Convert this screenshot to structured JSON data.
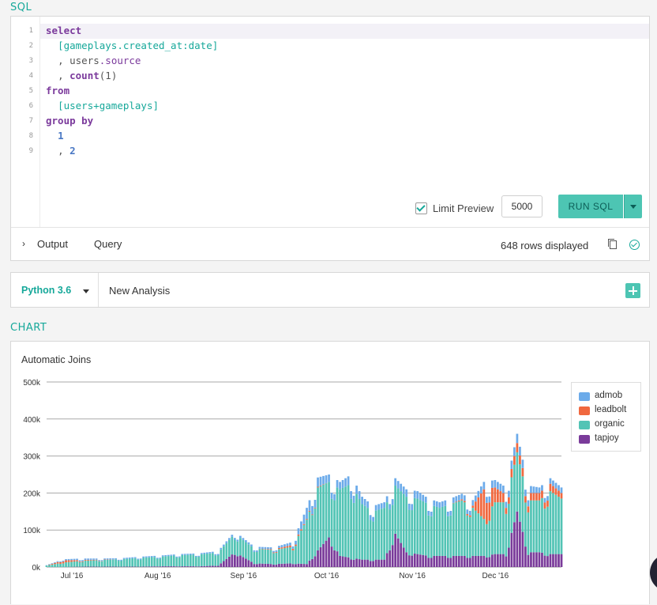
{
  "sql_section": {
    "label": "SQL",
    "line_numbers": [
      "1",
      "2",
      "3",
      "4",
      "5",
      "6",
      "7",
      "8",
      "9"
    ],
    "code": {
      "l1_kw": "select",
      "l2_table": "[gameplays.created_at:date]",
      "l3_sep": ", ",
      "l3_obj": "users",
      "l3_field": ".source",
      "l4_sep": ", ",
      "l4_fn": "count",
      "l4_args": "(1)",
      "l5_kw": "from",
      "l6_table": "[users+gameplays]",
      "l7_kw": "group by",
      "l8_num": "1",
      "l9_sep": ", ",
      "l9_num": "2"
    },
    "limit_preview_label": "Limit Preview",
    "limit_preview_checked": true,
    "limit_value": "5000",
    "run_button_label": "RUN SQL",
    "output_tab": "Output",
    "query_tab": "Query",
    "rows_displayed": "648 rows displayed"
  },
  "python_section": {
    "kernel": "Python 3.6",
    "analysis_title": "New Analysis"
  },
  "chart_section": {
    "label": "CHART"
  },
  "colors": {
    "accent": "#16a89a",
    "button": "#4dc5b3",
    "admob": "#6cabea",
    "leadbolt": "#f0683f",
    "organic": "#53c4b5",
    "tapjoy": "#7a3b9a"
  },
  "icons": [
    "chevron-right-icon",
    "copy-icon",
    "check-circle-icon",
    "caret-down-icon",
    "plus-icon",
    "checkbox-icon"
  ],
  "chart_data": {
    "type": "bar",
    "stacked": true,
    "title": "Automatic Joins",
    "ylim": [
      0,
      500000
    ],
    "y_ticks": [
      0,
      100000,
      200000,
      300000,
      400000,
      500000
    ],
    "y_tick_labels": [
      "0k",
      "100k",
      "200k",
      "300k",
      "400k",
      "500k"
    ],
    "x_tick_labels": [
      "Jul '16",
      "Aug '16",
      "Sep '16",
      "Oct '16",
      "Nov '16",
      "Dec '16"
    ],
    "x_start": "2016-06-27",
    "x_end": "2016-12-30",
    "grid": true,
    "legend_position": "top-right",
    "series": [
      {
        "name": "admob"
      },
      {
        "name": "leadbolt"
      },
      {
        "name": "organic"
      },
      {
        "name": "tapjoy"
      }
    ],
    "dates": [
      "2016-06-27",
      "2016-07-03",
      "2016-07-10",
      "2016-07-17",
      "2016-07-24",
      "2016-07-31",
      "2016-08-07",
      "2016-08-14",
      "2016-08-21",
      "2016-08-28",
      "2016-09-03",
      "2016-09-10",
      "2016-09-17",
      "2016-09-24",
      "2016-09-29",
      "2016-10-03",
      "2016-10-07",
      "2016-10-11",
      "2016-10-15",
      "2016-10-19",
      "2016-10-23",
      "2016-10-27",
      "2016-10-31",
      "2016-11-04",
      "2016-11-08",
      "2016-11-12",
      "2016-11-16",
      "2016-11-20",
      "2016-11-24",
      "2016-11-28",
      "2016-12-02",
      "2016-12-06",
      "2016-12-10",
      "2016-12-14",
      "2016-12-18",
      "2016-12-22",
      "2016-12-26",
      "2016-12-30"
    ],
    "admob": [
      1000,
      3000,
      4000,
      3000,
      3000,
      3000,
      3000,
      3000,
      3000,
      4000,
      6000,
      5000,
      5000,
      8000,
      30000,
      25000,
      20000,
      20000,
      25000,
      20000,
      15000,
      15000,
      20000,
      20000,
      20000,
      15000,
      15000,
      15000,
      15000,
      15000,
      20000,
      20000,
      20000,
      25000,
      20000,
      15000,
      15000,
      15000
    ],
    "leadbolt": [
      0,
      6000,
      2000,
      1000,
      0,
      0,
      0,
      0,
      0,
      0,
      0,
      0,
      2000,
      5000,
      2000,
      2000,
      0,
      0,
      0,
      0,
      0,
      0,
      0,
      0,
      0,
      0,
      0,
      0,
      3000,
      6000,
      80000,
      40000,
      20000,
      25000,
      20000,
      20000,
      20000,
      15000
    ],
    "organic": [
      4000,
      12000,
      16000,
      18000,
      20000,
      24000,
      26000,
      30000,
      32000,
      35000,
      50000,
      40000,
      38000,
      45000,
      120000,
      170000,
      150000,
      180000,
      200000,
      150000,
      130000,
      140000,
      130000,
      150000,
      150000,
      140000,
      130000,
      140000,
      150000,
      130000,
      100000,
      140000,
      140000,
      160000,
      140000,
      140000,
      170000,
      150000
    ],
    "tapjoy": [
      0,
      0,
      1000,
      1000,
      1000,
      1000,
      2000,
      2000,
      2000,
      4000,
      40000,
      10000,
      8000,
      10000,
      8000,
      45000,
      80000,
      30000,
      25000,
      20000,
      20000,
      20000,
      90000,
      40000,
      35000,
      30000,
      30000,
      30000,
      30000,
      30000,
      30000,
      35000,
      35000,
      150000,
      40000,
      40000,
      35000,
      35000
    ]
  }
}
